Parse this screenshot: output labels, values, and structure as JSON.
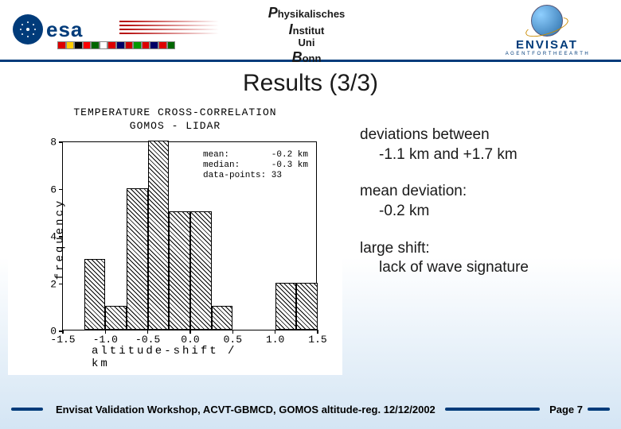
{
  "logos": {
    "esa_text": "esa",
    "pib_lines": [
      "Physikalisches",
      "Institut",
      "Uni",
      "Bonn"
    ],
    "envisat_text": "ENVISAT",
    "envisat_tagline": "A G E N T   F O R   T H E   E A R T H",
    "flag_colors": [
      "#d00",
      "#fc0",
      "#000",
      "#f00",
      "#060",
      "#fff",
      "#d00",
      "#006",
      "#c00",
      "#090",
      "#d00",
      "#006",
      "#d00",
      "#060"
    ]
  },
  "title": "Results (3/3)",
  "chart": {
    "type": "histogram",
    "title_line1": "TEMPERATURE CROSS-CORRELATION",
    "title_line2": "GOMOS - LIDAR",
    "xlabel": "altitude-shift / km",
    "ylabel": "frequency",
    "xlim": [
      -1.5,
      1.5
    ],
    "ylim": [
      0,
      8
    ],
    "xtick_step": 0.5,
    "yticks": [
      0,
      2,
      4,
      6,
      8
    ],
    "xticks": [
      -1.5,
      -1.0,
      -0.5,
      0.0,
      0.5,
      1.0,
      1.5
    ],
    "bin_width": 0.25,
    "bin_edges_start": -1.25,
    "values": [
      3,
      1,
      6,
      8,
      5,
      5,
      1,
      0,
      0,
      2,
      2
    ],
    "bar_border": "#000000",
    "hatch": "diagonal",
    "background": "#ffffff",
    "stats": {
      "mean_label": "mean:",
      "mean_value": "-0.2 km",
      "median_label": "median:",
      "median_value": "-0.3 km",
      "points_label": "data-points:",
      "points_value": "33"
    }
  },
  "bullets": [
    {
      "line1": "deviations between",
      "line2": "-1.1 km and +1.7 km"
    },
    {
      "line1": "mean deviation:",
      "line2": "-0.2 km"
    },
    {
      "line1": "large shift:",
      "line2": "lack of wave signature"
    }
  ],
  "footer": {
    "text": "Envisat Validation Workshop, ACVT-GBMCD, GOMOS altitude-reg. 12/12/2002",
    "page": "Page 7"
  },
  "colors": {
    "rule": "#003b7a",
    "bg_gradient_bottom": "#d4e5f4"
  }
}
